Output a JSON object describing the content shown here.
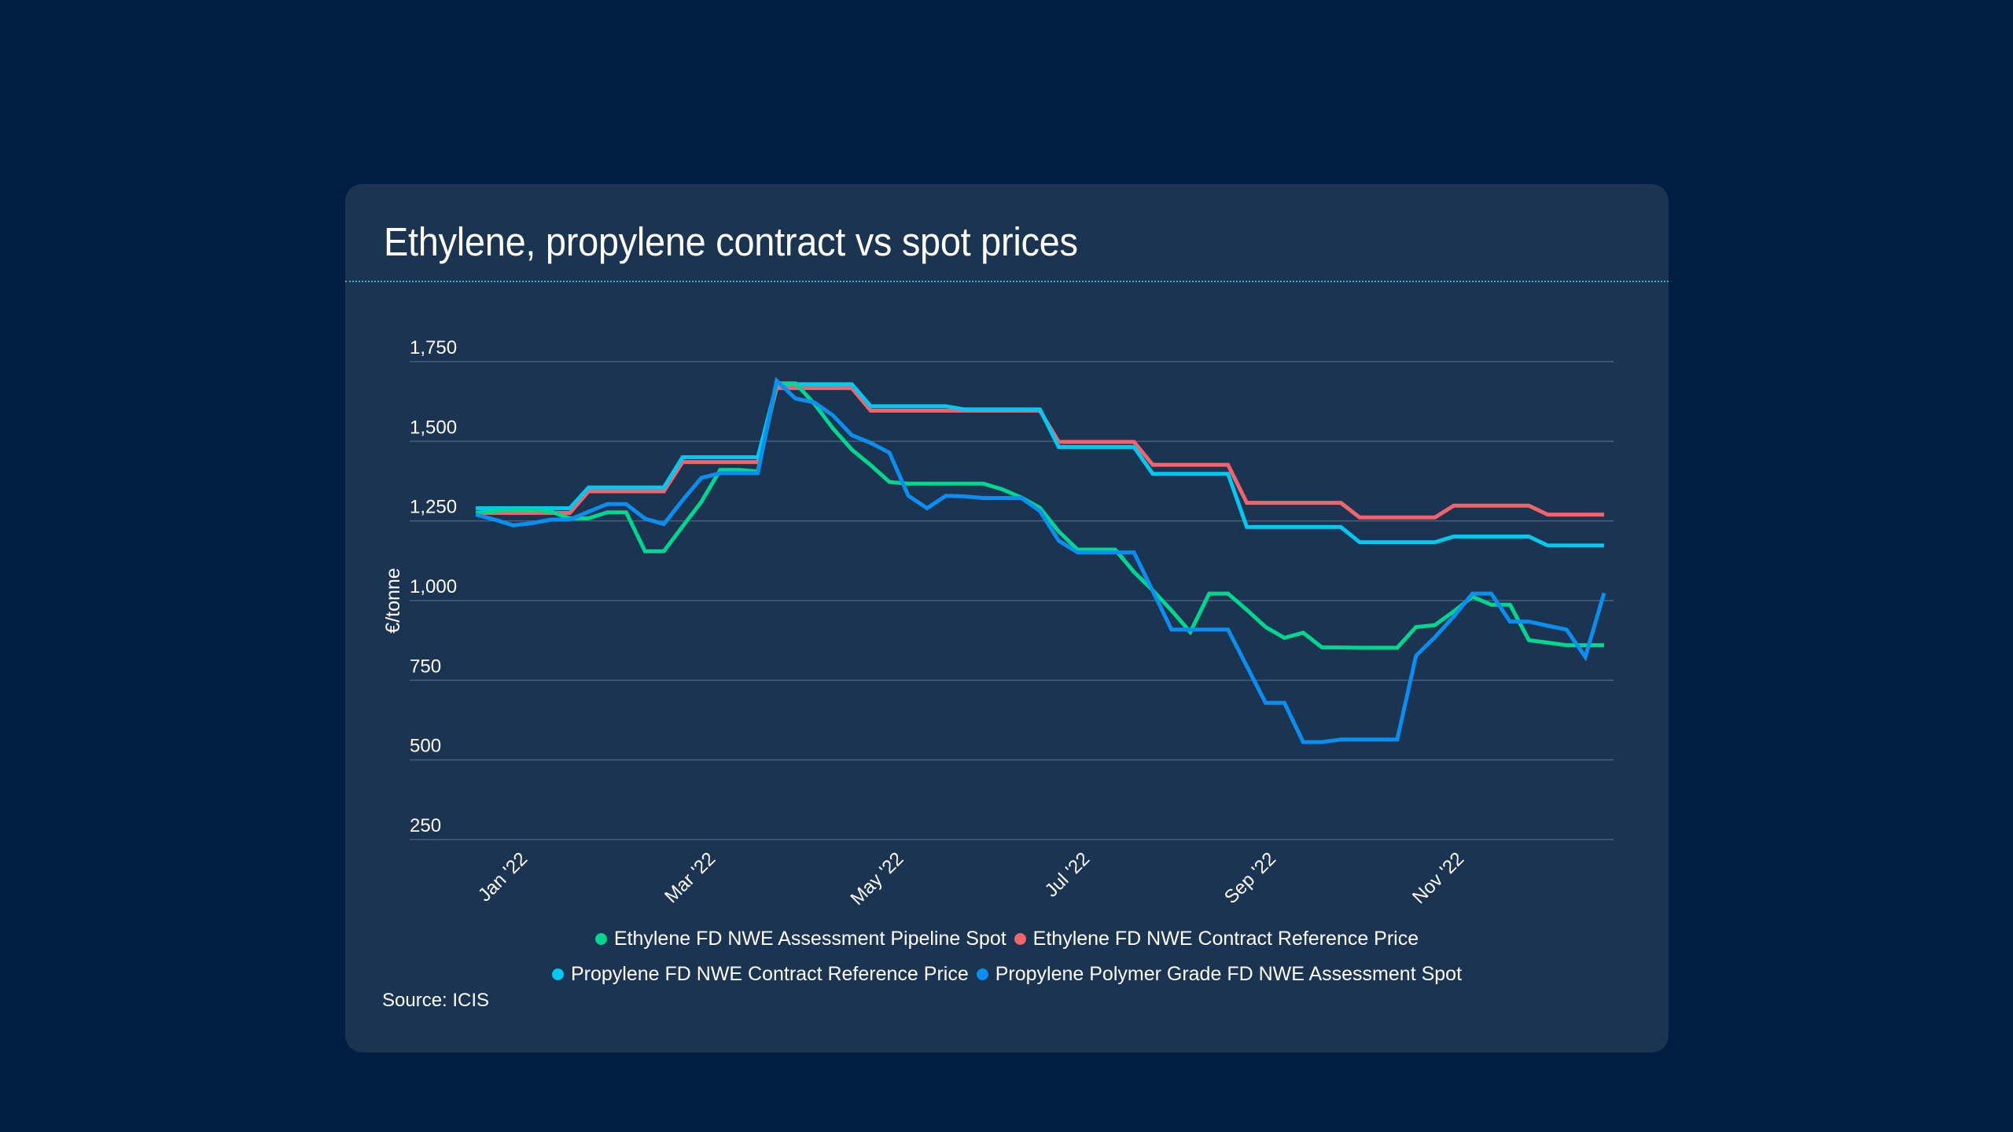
{
  "page": {
    "title": "Ethylene, propylene contract vs spot prices",
    "source": "Source: ICIS",
    "colors": {
      "background": "#001e41",
      "card": "#1b3451",
      "divider": "#1fb7e6"
    }
  },
  "chart_data": {
    "type": "line",
    "title": "Ethylene, propylene contract vs spot prices",
    "xlabel": "",
    "ylabel": "€/tonne",
    "ylim": [
      250,
      1750
    ],
    "yticks": [
      250,
      500,
      750,
      1000,
      1250,
      1500,
      1750
    ],
    "ytick_labels": [
      "250",
      "500",
      "750",
      "1,000",
      "1,250",
      "1,500",
      "1,750"
    ],
    "grid": true,
    "x_points": 61,
    "xticks": [
      {
        "label": "Jan '22",
        "index": 2.3
      },
      {
        "label": "Mar '22",
        "index": 12.3
      },
      {
        "label": "May '22",
        "index": 22.3
      },
      {
        "label": "Jul '22",
        "index": 32.2
      },
      {
        "label": "Sep '22",
        "index": 42.1
      },
      {
        "label": "Nov '22",
        "index": 52.1
      }
    ],
    "legend_position": "bottom",
    "series": [
      {
        "name": "Ethylene FD NWE Assessment Pipeline Spot",
        "color": "#00d68f",
        "values": [
          1275,
          1281,
          1284,
          1284,
          1279,
          1258,
          1258,
          1277,
          1277,
          1155,
          1155,
          1233,
          1310,
          1410,
          1410,
          1405,
          1682,
          1682,
          1618,
          1540,
          1474,
          1425,
          1372,
          1367,
          1367,
          1367,
          1367,
          1367,
          1349,
          1324,
          1291,
          1217,
          1160,
          1160,
          1160,
          1090,
          1032,
          969,
          901,
          1022,
          1022,
          971,
          917,
          883,
          899,
          853,
          853,
          852,
          852,
          852,
          917,
          923,
          966,
          1012,
          987,
          987,
          876,
          868,
          860,
          860,
          860
        ]
      },
      {
        "name": "Ethylene FD NWE Contract Reference Price",
        "color": "#f0646e",
        "values": [
          1275,
          1275,
          1275,
          1275,
          1275,
          1275,
          1343,
          1343,
          1343,
          1343,
          1343,
          1435,
          1435,
          1435,
          1435,
          1435,
          1667,
          1667,
          1667,
          1667,
          1667,
          1596,
          1596,
          1596,
          1596,
          1596,
          1596,
          1596,
          1596,
          1596,
          1596,
          1498,
          1498,
          1498,
          1498,
          1498,
          1426,
          1426,
          1426,
          1426,
          1426,
          1307,
          1307,
          1307,
          1307,
          1307,
          1307,
          1261,
          1261,
          1261,
          1261,
          1261,
          1298,
          1298,
          1298,
          1298,
          1298,
          1270,
          1270,
          1270,
          1270
        ]
      },
      {
        "name": "Propylene FD NWE Contract Reference Price",
        "color": "#00c8f0",
        "values": [
          1290,
          1290,
          1290,
          1290,
          1290,
          1290,
          1355,
          1355,
          1355,
          1355,
          1355,
          1450,
          1450,
          1450,
          1450,
          1450,
          1679,
          1679,
          1679,
          1679,
          1679,
          1610,
          1610,
          1610,
          1610,
          1610,
          1600,
          1600,
          1600,
          1600,
          1600,
          1482,
          1482,
          1482,
          1482,
          1482,
          1398,
          1398,
          1398,
          1398,
          1398,
          1231,
          1231,
          1231,
          1231,
          1231,
          1231,
          1183,
          1183,
          1183,
          1183,
          1183,
          1201,
          1201,
          1201,
          1201,
          1201,
          1173,
          1173,
          1173,
          1173
        ]
      },
      {
        "name": "Propylene Polymer Grade FD NWE Assessment Spot",
        "color": "#0a8ff0",
        "values": [
          1270,
          1254,
          1236,
          1243,
          1254,
          1254,
          1279,
          1303,
          1303,
          1257,
          1240,
          1315,
          1385,
          1400,
          1400,
          1400,
          1690,
          1634,
          1622,
          1581,
          1519,
          1495,
          1464,
          1329,
          1290,
          1329,
          1327,
          1322,
          1322,
          1322,
          1281,
          1188,
          1151,
          1151,
          1151,
          1151,
          1030,
          909,
          909,
          909,
          909,
          794,
          679,
          679,
          556,
          556,
          564,
          564,
          564,
          564,
          827,
          885,
          950,
          1022,
          1022,
          934,
          934,
          921,
          909,
          823,
          1024
        ]
      }
    ]
  }
}
